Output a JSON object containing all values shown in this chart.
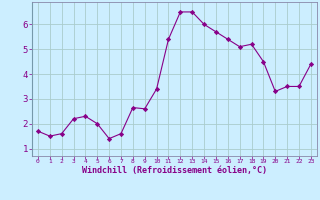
{
  "x": [
    0,
    1,
    2,
    3,
    4,
    5,
    6,
    7,
    8,
    9,
    10,
    11,
    12,
    13,
    14,
    15,
    16,
    17,
    18,
    19,
    20,
    21,
    22,
    23
  ],
  "y": [
    1.7,
    1.5,
    1.6,
    2.2,
    2.3,
    2.0,
    1.4,
    1.6,
    2.65,
    2.6,
    3.4,
    5.4,
    6.5,
    6.5,
    6.0,
    5.7,
    5.4,
    5.1,
    5.2,
    4.5,
    3.3,
    3.5,
    3.5,
    4.4
  ],
  "line_color": "#880088",
  "marker": "D",
  "marker_size": 2.2,
  "bg_color": "#cceeff",
  "grid_color": "#aacccc",
  "xlabel": "Windchill (Refroidissement éolien,°C)",
  "xlabel_color": "#880088",
  "ylabel_ticks": [
    1,
    2,
    3,
    4,
    5,
    6
  ],
  "xtick_labels": [
    "0",
    "1",
    "2",
    "3",
    "4",
    "5",
    "6",
    "7",
    "8",
    "9",
    "10",
    "11",
    "12",
    "13",
    "14",
    "15",
    "16",
    "17",
    "18",
    "19",
    "20",
    "21",
    "22",
    "23"
  ],
  "ylim": [
    0.7,
    6.9
  ],
  "xlim": [
    -0.5,
    23.5
  ],
  "tick_color": "#880088",
  "spine_color": "#8888aa"
}
